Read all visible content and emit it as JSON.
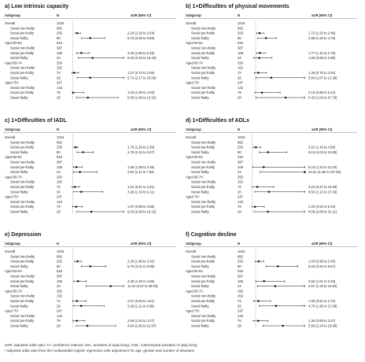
{
  "header": {
    "subgroup": "Subgroup",
    "n": "N",
    "aor": "aOR (95% CI)"
  },
  "rows": [
    {
      "label": "Overall",
      "n": "1015",
      "type": "group"
    },
    {
      "label": "Social non-frailty",
      "n": "682",
      "type": "item"
    },
    {
      "label": "Social pre-frailty",
      "n": "253",
      "type": "item"
    },
    {
      "label": "Social frailty",
      "n": "80",
      "type": "item"
    },
    {
      "label": "Aged 50-64",
      "n": "516",
      "type": "group"
    },
    {
      "label": "Social non-frailty",
      "n": "387",
      "type": "item"
    },
    {
      "label": "Social pre-frailty",
      "n": "105",
      "type": "item"
    },
    {
      "label": "Social frailty",
      "n": "24",
      "type": "item"
    },
    {
      "label": "Aged 65-74",
      "n": "250",
      "type": "group"
    },
    {
      "label": "Social non-frailty",
      "n": "152",
      "type": "item"
    },
    {
      "label": "Social pre-frailty",
      "n": "72",
      "type": "item"
    },
    {
      "label": "Social frailty",
      "n": "26",
      "type": "item"
    },
    {
      "label": "Aged 75+",
      "n": "247",
      "type": "group"
    },
    {
      "label": "Social non-frailty",
      "n": "143",
      "type": "item"
    },
    {
      "label": "Social pre-frailty",
      "n": "76",
      "type": "item"
    },
    {
      "label": "Social frailty",
      "n": "28",
      "type": "item"
    }
  ],
  "footer": {
    "line1": "aOR: adjusted odds ratio; CI: confidence interval; ADL: activities of daily living; IADL: instrumental activities of daily living",
    "line2": "ᵃ adjusted odds ratio from the multivariable logistic regression with adjustment for age, gender and number of diseases"
  },
  "chart_data": [
    {
      "type": "forest",
      "title": "a) Low intrinsic capacity",
      "xlim": [
        0,
        15
      ],
      "points": [
        null,
        null,
        {
          "or": 2.2,
          "lo": 1.59,
          "hi": 3.04,
          "text": "2.20 (1.59 to 3.04)"
        },
        {
          "or": 5.73,
          "lo": 3.38,
          "hi": 9.69,
          "text": "5.73 (3.38 to 9.69)"
        },
        null,
        null,
        {
          "or": 3.29,
          "lo": 1.99,
          "hi": 5.45,
          "text": "3.29 (1.99 to 5.45)"
        },
        {
          "or": 6.34,
          "lo": 2.49,
          "hi": 16.19,
          "text": "6.34 (2.49 to 16.19)"
        },
        null,
        null,
        {
          "or": 1.37,
          "lo": 0.74,
          "hi": 2.55,
          "text": "1.37 (0.74 to 2.55)"
        },
        {
          "or": 5.72,
          "lo": 2.17,
          "hi": 15.09,
          "text": "5.72 (2.17 to 15.09)"
        },
        null,
        null,
        {
          "or": 1.04,
          "lo": 1.09,
          "hi": 3.93,
          "text": "1.04 (1.09 to 3.93)"
        },
        {
          "or": 5.08,
          "lo": 1.96,
          "hi": 13.31,
          "text": "5.08 (1.96 to 13.31)"
        }
      ]
    },
    {
      "type": "forest",
      "title": "b) 1+Difficulties of physical movements",
      "xlim": [
        0,
        10
      ],
      "points": [
        null,
        null,
        {
          "or": 1.72,
          "lo": 1.2,
          "hi": 2.46,
          "text": "1.72 (1.20 to 2.46)"
        },
        {
          "or": 2.88,
          "lo": 1.39,
          "hi": 4.79,
          "text": "2.88 (1.39 to 4.79)"
        },
        null,
        null,
        {
          "or": 1.77,
          "lo": 1.15,
          "hi": 2.76,
          "text": "1.77 (1.15 to 2.76)"
        },
        {
          "or": 1.65,
          "lo": 0.68,
          "hi": 3.98,
          "text": "1.65 (0.68 to 3.98)"
        },
        null,
        null,
        {
          "or": 1.49,
          "lo": 0.75,
          "hi": 2.94,
          "text": "1.49 (0.75 to 2.94)"
        },
        {
          "or": 3.84,
          "lo": 1.07,
          "hi": 12.38,
          "text": "3.84 (1.07 to 12.38)"
        },
        null,
        null,
        {
          "or": 2.15,
          "lo": 0.85,
          "hi": 5.44,
          "text": "2.15 (0.85 to 5.44)"
        },
        {
          "or": 6.43,
          "lo": 1.04,
          "hi": 67.79,
          "text": "6.43 (1.04 to 67.79)"
        }
      ]
    },
    {
      "type": "forest",
      "title": "c) 1+Difficulties of IADL",
      "xlim": [
        0,
        15
      ],
      "points": [
        null,
        null,
        {
          "or": 1.76,
          "lo": 1.29,
          "hi": 2.39,
          "text": "1.76 (1.29 to 2.39)"
        },
        {
          "or": 3.79,
          "lo": 2.16,
          "hi": 6.57,
          "text": "3.79 (2.16 to 6.57)"
        },
        null,
        null,
        {
          "or": 1.95,
          "lo": 1.09,
          "hi": 3.49,
          "text": "1.95 (1.09 to 3.49)"
        },
        {
          "or": 2.91,
          "lo": 1.11,
          "hi": 7.63,
          "text": "2.91 (1.11 to 7.63)"
        },
        null,
        null,
        {
          "or": 1.51,
          "lo": 0.81,
          "hi": 2.81,
          "text": "1.51 (0.81 to 2.81)"
        },
        {
          "or": 3.29,
          "lo": 1.19,
          "hi": 9.11,
          "text": "3.29 (1.19 to 9.11)"
        },
        null,
        null,
        {
          "or": 1.87,
          "lo": 0.98,
          "hi": 3.58,
          "text": "1.87 (0.98 to 3.58)"
        },
        {
          "or": 6.03,
          "lo": 2.08,
          "hi": 18.22,
          "text": "6.03 (2.08 to 18.22)"
        }
      ]
    },
    {
      "type": "forest",
      "title": "d) 1+Difficulties of ADLs",
      "xlim": [
        0,
        25
      ],
      "points": [
        null,
        null,
        {
          "or": 2.61,
          "lo": 1.42,
          "hi": 4.8,
          "text": "2.61 (1.42 to 4.80)"
        },
        {
          "or": 8.16,
          "lo": 4.03,
          "hi": 16.55,
          "text": "8.16 (4.03 to 16.55)"
        },
        null,
        null,
        {
          "or": 6.15,
          "lo": 1.22,
          "hi": 31.04,
          "text": "6.15 (1.22 to 31.04)"
        },
        {
          "or": 24.81,
          "lo": 4.48,
          "hi": 137.45,
          "text": "24.81 (4.48 to 137.45)"
        },
        null,
        null,
        {
          "or": 3.22,
          "lo": 0.97,
          "hi": 10.69,
          "text": "3.22 (0.97 to 10.69)"
        },
        {
          "or": 8.53,
          "lo": 2.13,
          "hi": 27.43,
          "text": "8.53 (2.13 to 27.43)"
        },
        null,
        null,
        {
          "or": 2.2,
          "lo": 0.92,
          "hi": 6.43,
          "text": "2.20 (0.92 to 6.43)"
        },
        {
          "or": 8.06,
          "lo": 2.08,
          "hi": 31.11,
          "text": "8.06 (2.08 to 31.11)"
        }
      ]
    },
    {
      "type": "forest",
      "title": "e) Depression",
      "xlim": [
        0,
        15
      ],
      "points": [
        null,
        null,
        {
          "or": 2.26,
          "lo": 1.48,
          "hi": 3.32,
          "text": "2.26 (1.48 to 3.32)"
        },
        {
          "or": 5.75,
          "lo": 3.31,
          "hi": 9.98,
          "text": "5.75 (3.31 to 9.98)"
        },
        null,
        null,
        {
          "or": 2.39,
          "lo": 1.25,
          "hi": 4.65,
          "text": "2.39 (1.25 to 4.65)"
        },
        {
          "or": 11.31,
          "lo": 4.57,
          "hi": 28.03,
          "text": "11.31 (4.57 to 28.03)"
        },
        null,
        null,
        {
          "or": 2.07,
          "lo": 0.93,
          "hi": 4.61,
          "text": "2.07 (0.93 to 4.61)"
        },
        {
          "or": 3.26,
          "lo": 1.11,
          "hi": 9.48,
          "text": "3.26 (1.11 to 9.48)"
        },
        null,
        null,
        {
          "or": 2.08,
          "lo": 1.02,
          "hi": 4.27,
          "text": "2.08 (1.02 to 4.27)"
        },
        {
          "or": 4.94,
          "lo": 1.9,
          "hi": 12.67,
          "text": "4.94 (1.90 to 12.67)"
        }
      ]
    },
    {
      "type": "forest",
      "title": "f) Cognitive decline",
      "xlim": [
        0,
        10
      ],
      "points": [
        null,
        null,
        {
          "or": 1.54,
          "lo": 0.96,
          "hi": 2.45,
          "text": "1.54 (0.96 to 2.45)"
        },
        {
          "or": 5.03,
          "lo": 2.92,
          "hi": 8.67,
          "text": "5.03 (2.92 to 8.67)"
        },
        null,
        null,
        {
          "or": 2.52,
          "lo": 1.01,
          "hi": 6.28,
          "text": "2.52 (1.01 to 6.28)"
        },
        {
          "or": 4.57,
          "lo": 1.33,
          "hi": 15.63,
          "text": "4.57 (1.33 to 15.63)"
        },
        null,
        null,
        {
          "or": 1.5,
          "lo": 0.61,
          "hi": 3.72,
          "text": "1.50 (0.61 to 3.72)"
        },
        {
          "or": 4.7,
          "lo": 1.66,
          "hi": 13.38,
          "text": "4.70 (1.66 to 13.38)"
        },
        null,
        null,
        {
          "or": 1.45,
          "lo": 0.58,
          "hi": 3.27,
          "text": "1.45 (0.58 to 3.27)"
        },
        {
          "or": 5.93,
          "lo": 2.34,
          "hi": 15.06,
          "text": "5.93 (2.34 to 15.06)"
        }
      ]
    }
  ]
}
